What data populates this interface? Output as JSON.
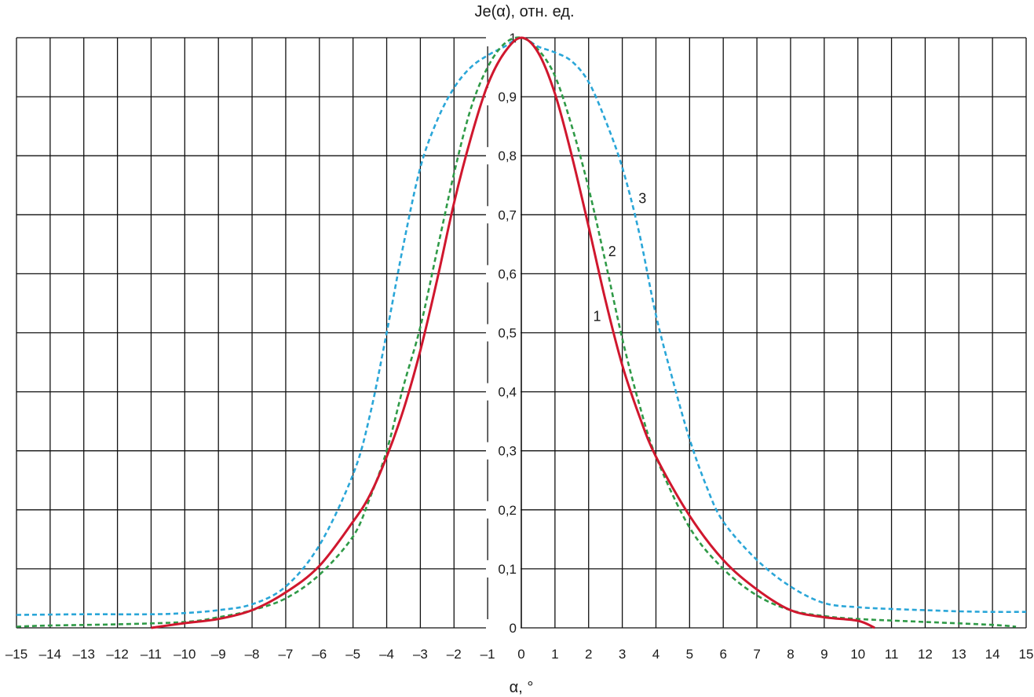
{
  "chart_data": {
    "type": "line",
    "title": "Je(α), отн. ед.",
    "xlabel": "α, °",
    "ylabel": "Je(α), отн. ед.",
    "xlim": [
      -15,
      15
    ],
    "ylim": [
      0,
      1
    ],
    "grid": true,
    "x_ticks": [
      "–15",
      "–14",
      "–13",
      "–12",
      "–11",
      "–10",
      "–9",
      "–8",
      "–7",
      "–6",
      "–5",
      "–4",
      "–3",
      "–2",
      "–1",
      "0",
      "1",
      "2",
      "3",
      "4",
      "5",
      "6",
      "7",
      "8",
      "9",
      "10",
      "11",
      "12",
      "13",
      "14",
      "15"
    ],
    "y_ticks": [
      "0",
      "0,1",
      "0,2",
      "0,3",
      "0,4",
      "0,5",
      "0,6",
      "0,7",
      "0,8",
      "0,9",
      "1"
    ],
    "series": [
      {
        "name": "1",
        "color": "#d0172e",
        "style": "solid",
        "points": [
          [
            -11,
            0
          ],
          [
            -10,
            0.008
          ],
          [
            -9,
            0.015
          ],
          [
            -8,
            0.03
          ],
          [
            -7,
            0.06
          ],
          [
            -6,
            0.105
          ],
          [
            -5,
            0.18
          ],
          [
            -4.5,
            0.225
          ],
          [
            -4,
            0.29
          ],
          [
            -3.5,
            0.37
          ],
          [
            -3,
            0.47
          ],
          [
            -2.5,
            0.59
          ],
          [
            -2,
            0.72
          ],
          [
            -1.5,
            0.83
          ],
          [
            -1,
            0.92
          ],
          [
            -0.5,
            0.975
          ],
          [
            0,
            1
          ],
          [
            0.5,
            0.975
          ],
          [
            1,
            0.905
          ],
          [
            1.5,
            0.8
          ],
          [
            2,
            0.68
          ],
          [
            2.5,
            0.555
          ],
          [
            3,
            0.445
          ],
          [
            3.5,
            0.36
          ],
          [
            4,
            0.29
          ],
          [
            5,
            0.19
          ],
          [
            6,
            0.115
          ],
          [
            7,
            0.065
          ],
          [
            8,
            0.03
          ],
          [
            9,
            0.018
          ],
          [
            10,
            0.012
          ],
          [
            10.5,
            0
          ]
        ],
        "label_at": [
          2.25,
          0.52
        ]
      },
      {
        "name": "2",
        "color": "#2f9a47",
        "style": "dashed",
        "points": [
          [
            -15,
            0.002
          ],
          [
            -14,
            0.004
          ],
          [
            -12,
            0.006
          ],
          [
            -10,
            0.01
          ],
          [
            -9,
            0.018
          ],
          [
            -8,
            0.03
          ],
          [
            -7,
            0.05
          ],
          [
            -6,
            0.09
          ],
          [
            -5,
            0.155
          ],
          [
            -4.5,
            0.22
          ],
          [
            -4,
            0.3
          ],
          [
            -3.5,
            0.41
          ],
          [
            -3,
            0.51
          ],
          [
            -2.5,
            0.64
          ],
          [
            -2,
            0.77
          ],
          [
            -1.5,
            0.88
          ],
          [
            -1,
            0.95
          ],
          [
            -0.5,
            0.99
          ],
          [
            0,
            1
          ],
          [
            0.5,
            0.98
          ],
          [
            1,
            0.935
          ],
          [
            1.5,
            0.85
          ],
          [
            2,
            0.745
          ],
          [
            2.5,
            0.62
          ],
          [
            3,
            0.49
          ],
          [
            3.5,
            0.38
          ],
          [
            4,
            0.29
          ],
          [
            5,
            0.17
          ],
          [
            6,
            0.1
          ],
          [
            7,
            0.055
          ],
          [
            8,
            0.03
          ],
          [
            9,
            0.02
          ],
          [
            10,
            0.015
          ],
          [
            12,
            0.01
          ],
          [
            14,
            0.005
          ],
          [
            14.7,
            0.002
          ]
        ],
        "label_at": [
          2.7,
          0.63
        ]
      },
      {
        "name": "3",
        "color": "#2aa6d8",
        "style": "dashed",
        "points": [
          [
            -15,
            0.022
          ],
          [
            -13,
            0.023
          ],
          [
            -11,
            0.023
          ],
          [
            -10,
            0.025
          ],
          [
            -9,
            0.03
          ],
          [
            -8,
            0.04
          ],
          [
            -7,
            0.07
          ],
          [
            -6,
            0.14
          ],
          [
            -5,
            0.26
          ],
          [
            -4.5,
            0.36
          ],
          [
            -4,
            0.5
          ],
          [
            -3.5,
            0.65
          ],
          [
            -3,
            0.78
          ],
          [
            -2.5,
            0.86
          ],
          [
            -2,
            0.915
          ],
          [
            -1.5,
            0.95
          ],
          [
            -1,
            0.97
          ],
          [
            -0.5,
            0.985
          ],
          [
            0,
            1
          ],
          [
            0.5,
            0.985
          ],
          [
            1,
            0.975
          ],
          [
            1.5,
            0.96
          ],
          [
            2,
            0.925
          ],
          [
            2.5,
            0.86
          ],
          [
            3,
            0.78
          ],
          [
            3.5,
            0.67
          ],
          [
            4,
            0.53
          ],
          [
            4.5,
            0.42
          ],
          [
            5,
            0.32
          ],
          [
            5.5,
            0.24
          ],
          [
            6,
            0.18
          ],
          [
            7,
            0.115
          ],
          [
            8,
            0.07
          ],
          [
            9,
            0.042
          ],
          [
            10,
            0.035
          ],
          [
            11,
            0.032
          ],
          [
            12,
            0.03
          ],
          [
            13,
            0.028
          ],
          [
            14,
            0.027
          ],
          [
            15,
            0.027
          ]
        ],
        "label_at": [
          3.6,
          0.72
        ]
      }
    ]
  }
}
